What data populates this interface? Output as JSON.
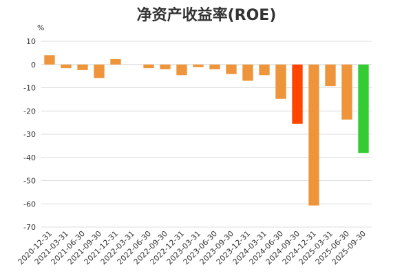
{
  "chart_data": {
    "type": "bar",
    "title": "净资产收益率(ROE)",
    "ylabel": "%",
    "xlabel": "",
    "ylim": [
      -70,
      10
    ],
    "yticks": [
      10,
      0,
      -10,
      -20,
      -30,
      -40,
      -50,
      -60,
      -70
    ],
    "grid": true,
    "categories": [
      "2020-12-31",
      "2021-03-31",
      "2021-06-30",
      "2021-09-30",
      "2021-12-31",
      "2022-03-31",
      "2022-06-30",
      "2022-09-30",
      "2022-12-31",
      "2023-03-31",
      "2023-06-30",
      "2023-09-30",
      "2023-12-31",
      "2024-03-31",
      "2024-06-30",
      "2024-09-30",
      "2024-12-31",
      "2025-03-31",
      "2025-06-30",
      "2025-09-30"
    ],
    "values": [
      4.0,
      -1.6,
      -2.4,
      -5.8,
      2.3,
      0.0,
      -1.6,
      -2.0,
      -4.6,
      -1.1,
      -2.0,
      -4.1,
      -7.0,
      -4.6,
      -14.8,
      -25.5,
      -60.7,
      -9.3,
      -23.7,
      -38.1
    ],
    "colors": [
      "#ee953b",
      "#ee953b",
      "#ee953b",
      "#ee953b",
      "#ee953b",
      "#ee953b",
      "#ee953b",
      "#ee953b",
      "#ee953b",
      "#ee953b",
      "#ee953b",
      "#ee953b",
      "#ee953b",
      "#ee953b",
      "#ee953b",
      "#ff4500",
      "#ee953b",
      "#ee953b",
      "#ee953b",
      "#33cc33"
    ]
  }
}
